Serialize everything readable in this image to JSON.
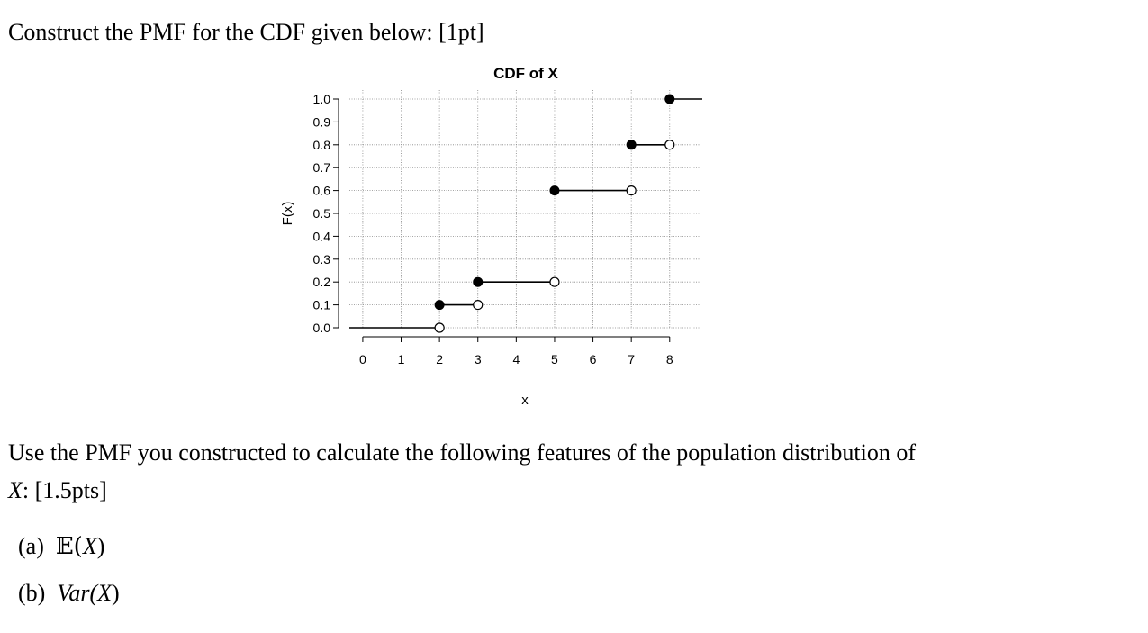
{
  "question": {
    "prompt": "Construct the PMF for the CDF given below: [1pt]",
    "followup_line1": "Use the PMF you constructed to calculate the following features of the population distribution of",
    "followup_var": "X",
    "followup_line2_rest": ": [1.5pts]",
    "items": [
      {
        "label": "(a)",
        "expr_prefix": "𝔼(",
        "expr_var": "X",
        "expr_suffix": ")"
      },
      {
        "label": "(b)",
        "expr_prefix": "Var(",
        "expr_var": "X",
        "expr_suffix": ")"
      }
    ]
  },
  "chart_data": {
    "type": "line",
    "subtype": "step-cdf",
    "title": "CDF of X",
    "xlabel": "x",
    "ylabel": "F(x)",
    "xlim": [
      -0.35,
      8.85
    ],
    "ylim": [
      0,
      1
    ],
    "xticks": [
      0,
      1,
      2,
      3,
      4,
      5,
      6,
      7,
      8
    ],
    "yticks": [
      0.0,
      0.1,
      0.2,
      0.3,
      0.4,
      0.5,
      0.6,
      0.7,
      0.8,
      0.9,
      1.0
    ],
    "ytick_labels": [
      "0.0",
      "0.1",
      "0.2",
      "0.3",
      "0.4",
      "0.5",
      "0.6",
      "0.7",
      "0.8",
      "0.9",
      "1.0"
    ],
    "grid": true,
    "steps": [
      {
        "x_start": -0.35,
        "x_end": 2,
        "y": 0.0,
        "closed_left": false,
        "open_right": true
      },
      {
        "x_start": 2,
        "x_end": 3,
        "y": 0.1,
        "closed_left": true,
        "open_right": true
      },
      {
        "x_start": 3,
        "x_end": 5,
        "y": 0.2,
        "closed_left": true,
        "open_right": true
      },
      {
        "x_start": 5,
        "x_end": 7,
        "y": 0.6,
        "closed_left": true,
        "open_right": true
      },
      {
        "x_start": 7,
        "x_end": 8,
        "y": 0.8,
        "closed_left": true,
        "open_right": true
      },
      {
        "x_start": 8,
        "x_end": 8.85,
        "y": 1.0,
        "closed_left": true,
        "open_right": false
      }
    ],
    "colors": {
      "line": "#000000",
      "grid": "#888888"
    }
  }
}
